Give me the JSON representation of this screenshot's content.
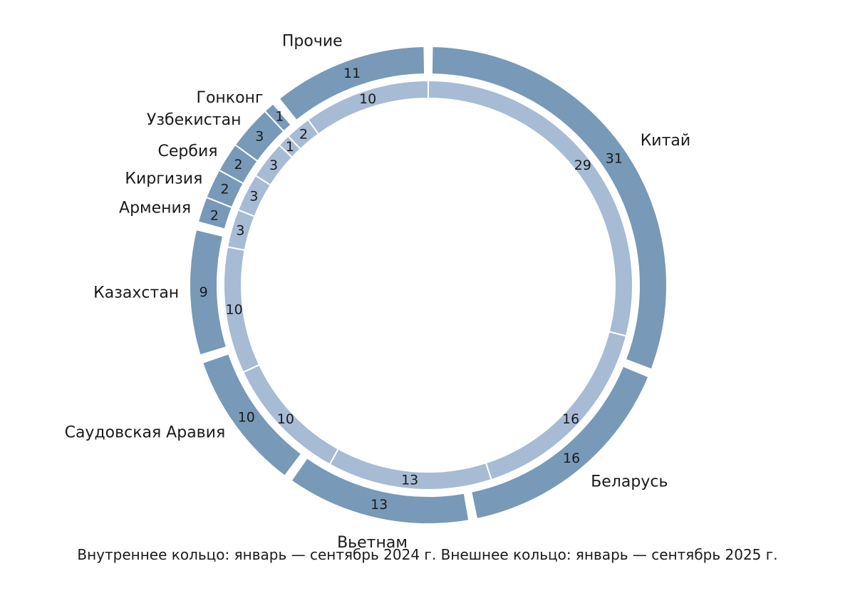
{
  "chart_data": {
    "type": "pie",
    "variant": "double-donut",
    "categories": [
      "Китай",
      "Беларусь",
      "Вьетнам",
      "Саудовская Аравия",
      "Казахстан",
      "Армения",
      "Киргизия",
      "Сербия",
      "Узбекистан",
      "Гонконг",
      "Прочие"
    ],
    "series": [
      {
        "ring": "outer",
        "values": [
          31,
          16,
          13,
          10,
          9,
          2,
          2,
          2,
          3,
          1,
          11
        ]
      },
      {
        "ring": "inner",
        "values": [
          29,
          16,
          13,
          10,
          10,
          3,
          3,
          3,
          1,
          2,
          10
        ]
      }
    ],
    "colors": {
      "outer": "#7899b7",
      "inner": "#a7bbd4",
      "separator": "#ffffff"
    },
    "caption": "Внутреннее кольцо: январь — сентябрь 2024 г. Внешнее кольцо: январь — сентябрь 2025 г."
  }
}
